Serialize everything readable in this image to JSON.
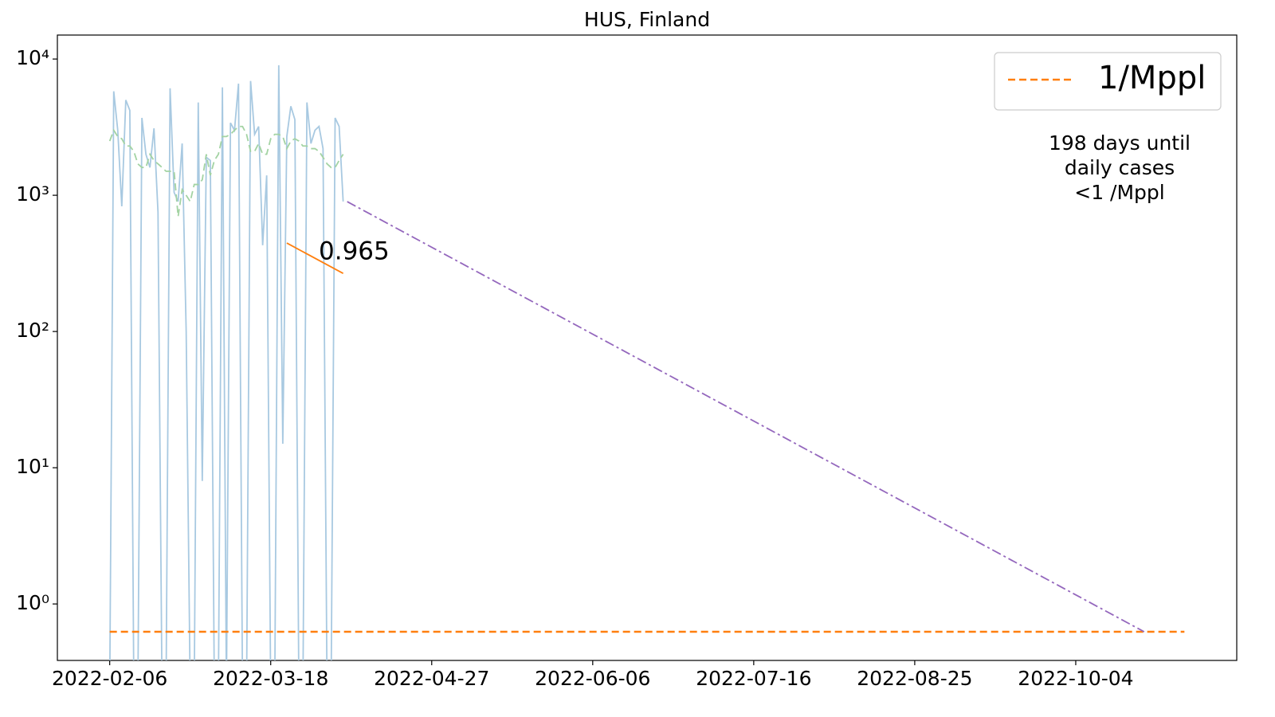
{
  "chart_data": {
    "type": "line",
    "title": "HUS, Finland",
    "log_y": true,
    "legend": "upper right",
    "xlim": [
      "2022-01-24",
      "2022-11-13"
    ],
    "xticks": [
      "2022-02-06",
      "2022-03-18",
      "2022-04-27",
      "2022-06-06",
      "2022-07-16",
      "2022-08-25",
      "2022-10-04"
    ],
    "ylim": [
      0.385,
      15000
    ],
    "yticks": [
      {
        "value": 1,
        "label": "10⁰"
      },
      {
        "value": 10,
        "label": "10¹"
      },
      {
        "value": 100,
        "label": "10²"
      },
      {
        "value": 1000,
        "label": "10³"
      },
      {
        "value": 10000,
        "label": "10⁴"
      }
    ],
    "x": [
      "2022-02-06",
      "2022-02-07",
      "2022-02-08",
      "2022-02-09",
      "2022-02-10",
      "2022-02-11",
      "2022-02-12",
      "2022-02-13",
      "2022-02-14",
      "2022-02-15",
      "2022-02-16",
      "2022-02-17",
      "2022-02-18",
      "2022-02-19",
      "2022-02-20",
      "2022-02-21",
      "2022-02-22",
      "2022-02-23",
      "2022-02-24",
      "2022-02-25",
      "2022-02-26",
      "2022-02-27",
      "2022-02-28",
      "2022-03-01",
      "2022-03-02",
      "2022-03-03",
      "2022-03-04",
      "2022-03-05",
      "2022-03-06",
      "2022-03-07",
      "2022-03-08",
      "2022-03-09",
      "2022-03-10",
      "2022-03-11",
      "2022-03-12",
      "2022-03-13",
      "2022-03-14",
      "2022-03-15",
      "2022-03-16",
      "2022-03-17",
      "2022-03-18",
      "2022-03-19",
      "2022-03-20",
      "2022-03-21",
      "2022-03-22",
      "2022-03-23",
      "2022-03-24",
      "2022-03-25",
      "2022-03-26",
      "2022-03-27",
      "2022-03-28",
      "2022-03-29",
      "2022-03-30",
      "2022-03-31",
      "2022-04-01",
      "2022-04-02",
      "2022-04-03",
      "2022-04-04",
      "2022-04-05"
    ],
    "series": [
      {
        "color": "#a8c9e1",
        "style": "solid",
        "values": [
          0,
          5800,
          3000,
          830,
          5000,
          4200,
          0,
          0,
          3700,
          2000,
          1600,
          3100,
          750,
          0,
          0,
          6100,
          1050,
          900,
          2400,
          100,
          0,
          0,
          4800,
          8,
          1900,
          1800,
          0,
          0,
          6200,
          0,
          3400,
          3000,
          6600,
          0,
          0,
          6900,
          2800,
          3200,
          430,
          1400,
          0,
          0,
          9000,
          15,
          2700,
          4500,
          3600,
          0,
          0,
          4800,
          2400,
          3000,
          3200,
          2200,
          0,
          0,
          3700,
          3200,
          900
        ]
      },
      {
        "color": "#a3d3a3",
        "style": "dashed",
        "values": [
          2500,
          3000,
          2700,
          2600,
          2300,
          2300,
          2100,
          1700,
          1600,
          1600,
          2000,
          1800,
          1700,
          1600,
          1500,
          1500,
          1500,
          700,
          1100,
          1000,
          900,
          1200,
          1200,
          1300,
          2000,
          1400,
          1800,
          2000,
          2700,
          2700,
          2800,
          3000,
          3200,
          3200,
          2800,
          2100,
          2100,
          2400,
          2000,
          2000,
          2600,
          2800,
          2800,
          2700,
          2200,
          2500,
          2600,
          2500,
          2300,
          2300,
          2200,
          2200,
          2100,
          1900,
          1700,
          1600,
          1600,
          1800,
          2000
        ]
      },
      {
        "name": "1/Mppl",
        "color": "#ff7f0e",
        "style": "dashed",
        "x": [
          "2022-02-06",
          "2022-10-31"
        ],
        "values": [
          0.625,
          0.625
        ]
      },
      {
        "color": "#9467bd",
        "style": "dashdot",
        "x": [
          "2022-04-06",
          "2022-10-21"
        ],
        "values": [
          898,
          0.625
        ]
      },
      {
        "color": "#ff7f0e",
        "style": "solid",
        "x": [
          "2022-03-22",
          "2022-04-05"
        ],
        "values": [
          446,
          267
        ]
      }
    ],
    "annotations": [
      {
        "text": "0.965",
        "color": "#ff7f0e"
      },
      {
        "lines": [
          "198 days until",
          "daily cases",
          "<1 /Mppl"
        ],
        "color": "#9467bd"
      }
    ]
  }
}
